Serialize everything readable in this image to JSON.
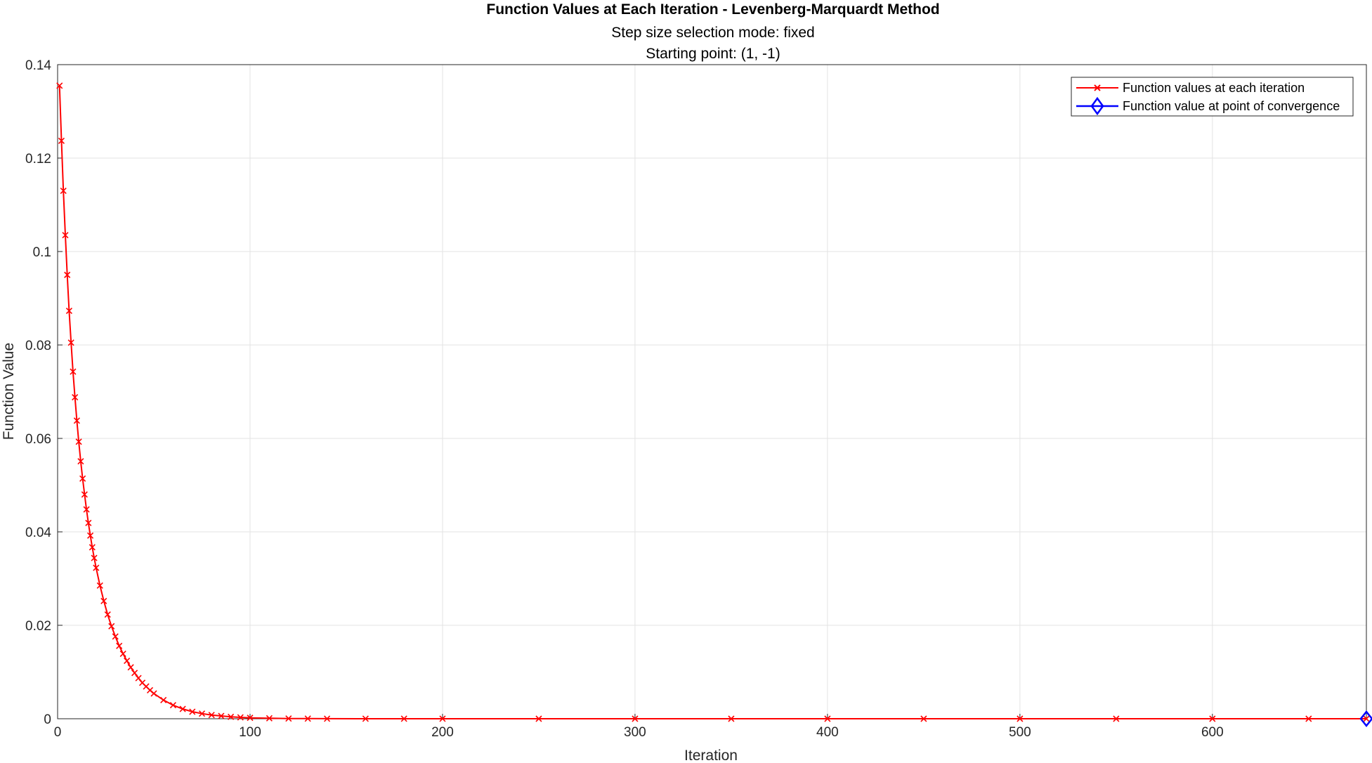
{
  "chart_data": {
    "type": "line",
    "title": "Function Values at Each Iteration - Levenberg-Marquardt Method",
    "subtitles": [
      "Step size selection mode: fixed",
      "Starting point: (1, -1)"
    ],
    "xlabel": "Iteration",
    "ylabel": "Function Value",
    "xlim": [
      0,
      680
    ],
    "ylim": [
      0,
      0.14
    ],
    "xticks": [
      0,
      100,
      200,
      300,
      400,
      500,
      600
    ],
    "xtick_labels": [
      "0",
      "100",
      "200",
      "300",
      "400",
      "500",
      "600"
    ],
    "yticks": [
      0,
      0.02,
      0.04,
      0.06,
      0.08,
      0.1,
      0.12,
      0.14
    ],
    "ytick_labels": [
      "0",
      "0.02",
      "0.04",
      "0.06",
      "0.08",
      "0.1",
      "0.12",
      "0.14"
    ],
    "grid": true,
    "legend_position": "top-right",
    "series": [
      {
        "name": "Function values at each iteration",
        "color": "#ff0000",
        "marker": "x",
        "x": [
          1,
          2,
          3,
          4,
          5,
          6,
          7,
          8,
          9,
          10,
          11,
          12,
          13,
          14,
          15,
          16,
          17,
          18,
          19,
          20,
          22,
          24,
          26,
          28,
          30,
          32,
          34,
          36,
          38,
          40,
          42,
          44,
          46,
          48,
          50,
          55,
          60,
          65,
          70,
          75,
          80,
          85,
          90,
          95,
          100,
          110,
          120,
          130,
          140,
          160,
          180,
          200,
          250,
          300,
          350,
          400,
          450,
          500,
          550,
          600,
          650,
          680
        ],
        "values": [
          0.1355,
          0.1237,
          0.113,
          0.1035,
          0.095,
          0.0873,
          0.0805,
          0.0743,
          0.0688,
          0.0638,
          0.0593,
          0.0551,
          0.0514,
          0.048,
          0.0448,
          0.0419,
          0.0392,
          0.0367,
          0.0344,
          0.0323,
          0.0285,
          0.0252,
          0.0223,
          0.0198,
          0.0176,
          0.0156,
          0.0139,
          0.0124,
          0.011,
          0.0098,
          0.0087,
          0.0077,
          0.0069,
          0.0061,
          0.0054,
          0.004,
          0.0029,
          0.0021,
          0.0015,
          0.0011,
          0.0008,
          0.0006,
          0.0004,
          0.0003,
          0.0002,
          0.0001,
          5e-05,
          3e-05,
          1e-05,
          5e-06,
          2e-06,
          1e-06,
          0,
          0,
          0,
          0,
          0,
          0,
          0,
          0,
          0,
          0
        ]
      },
      {
        "name": "Function value at point of convergence",
        "color": "#0000ff",
        "marker": "diamond",
        "x": [
          680
        ],
        "values": [
          0
        ]
      }
    ]
  }
}
